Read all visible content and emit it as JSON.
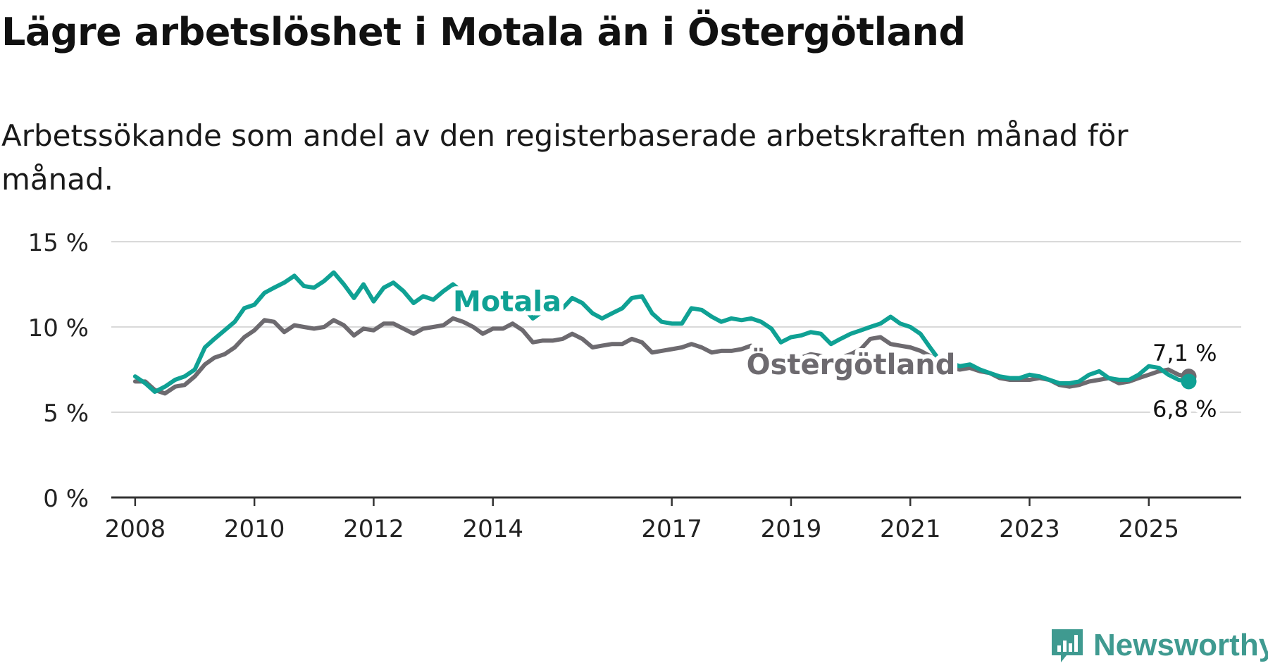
{
  "title": "Lägre arbetslöshet i Motala än i Östergötland",
  "subtitle": "Arbetssökande som andel av den registerbaserade arbetskraften månad för månad.",
  "brand": {
    "name": "Newsworthy",
    "color": "#3f9a90"
  },
  "chart_data": {
    "type": "line",
    "title": "Lägre arbetslöshet i Motala än i Östergötland",
    "xlabel": "",
    "ylabel": "",
    "ylim": [
      0,
      15
    ],
    "xlim": [
      2007.6,
      2026.55
    ],
    "y_ticks": [
      {
        "value": 0,
        "label": "0 %"
      },
      {
        "value": 5,
        "label": "5 %"
      },
      {
        "value": 10,
        "label": "10 %"
      },
      {
        "value": 15,
        "label": "15 %"
      }
    ],
    "x_ticks": [
      {
        "value": 2008,
        "label": "2008"
      },
      {
        "value": 2010,
        "label": "2010"
      },
      {
        "value": 2012,
        "label": "2012"
      },
      {
        "value": 2014,
        "label": "2014"
      },
      {
        "value": 2017,
        "label": "2017"
      },
      {
        "value": 2019,
        "label": "2019"
      },
      {
        "value": 2021,
        "label": "2021"
      },
      {
        "value": 2023,
        "label": "2023"
      },
      {
        "value": 2025,
        "label": "2025"
      }
    ],
    "grid": true,
    "series": [
      {
        "name": "Östergötland",
        "label": "Östergötland",
        "color": "#6d6a6f",
        "end_label": "7,1 %",
        "points": [
          [
            2008.0,
            6.8
          ],
          [
            2008.17,
            6.8
          ],
          [
            2008.33,
            6.3
          ],
          [
            2008.5,
            6.1
          ],
          [
            2008.67,
            6.5
          ],
          [
            2008.83,
            6.6
          ],
          [
            2009.0,
            7.1
          ],
          [
            2009.17,
            7.8
          ],
          [
            2009.33,
            8.2
          ],
          [
            2009.5,
            8.4
          ],
          [
            2009.67,
            8.8
          ],
          [
            2009.83,
            9.4
          ],
          [
            2010.0,
            9.8
          ],
          [
            2010.17,
            10.4
          ],
          [
            2010.33,
            10.3
          ],
          [
            2010.5,
            9.7
          ],
          [
            2010.67,
            10.1
          ],
          [
            2010.83,
            10.0
          ],
          [
            2011.0,
            9.9
          ],
          [
            2011.17,
            10.0
          ],
          [
            2011.33,
            10.4
          ],
          [
            2011.5,
            10.1
          ],
          [
            2011.67,
            9.5
          ],
          [
            2011.83,
            9.9
          ],
          [
            2012.0,
            9.8
          ],
          [
            2012.17,
            10.2
          ],
          [
            2012.33,
            10.2
          ],
          [
            2012.5,
            9.9
          ],
          [
            2012.67,
            9.6
          ],
          [
            2012.83,
            9.9
          ],
          [
            2013.0,
            10.0
          ],
          [
            2013.17,
            10.1
          ],
          [
            2013.33,
            10.5
          ],
          [
            2013.5,
            10.3
          ],
          [
            2013.67,
            10.0
          ],
          [
            2013.83,
            9.6
          ],
          [
            2014.0,
            9.9
          ],
          [
            2014.17,
            9.9
          ],
          [
            2014.33,
            10.2
          ],
          [
            2014.5,
            9.8
          ],
          [
            2014.67,
            9.1
          ],
          [
            2014.83,
            9.2
          ],
          [
            2015.0,
            9.2
          ],
          [
            2015.17,
            9.3
          ],
          [
            2015.33,
            9.6
          ],
          [
            2015.5,
            9.3
          ],
          [
            2015.67,
            8.8
          ],
          [
            2015.83,
            8.9
          ],
          [
            2016.0,
            9.0
          ],
          [
            2016.17,
            9.0
          ],
          [
            2016.33,
            9.3
          ],
          [
            2016.5,
            9.1
          ],
          [
            2016.67,
            8.5
          ],
          [
            2016.83,
            8.6
          ],
          [
            2017.0,
            8.7
          ],
          [
            2017.17,
            8.8
          ],
          [
            2017.33,
            9.0
          ],
          [
            2017.5,
            8.8
          ],
          [
            2017.67,
            8.5
          ],
          [
            2017.83,
            8.6
          ],
          [
            2018.0,
            8.6
          ],
          [
            2018.17,
            8.7
          ],
          [
            2018.33,
            8.9
          ],
          [
            2018.5,
            8.4
          ],
          [
            2018.67,
            8.1
          ],
          [
            2018.83,
            8.2
          ],
          [
            2019.0,
            8.3
          ],
          [
            2019.17,
            8.2
          ],
          [
            2019.33,
            8.4
          ],
          [
            2019.5,
            8.3
          ],
          [
            2019.67,
            8.0
          ],
          [
            2019.83,
            8.2
          ],
          [
            2020.0,
            8.4
          ],
          [
            2020.17,
            8.7
          ],
          [
            2020.33,
            9.3
          ],
          [
            2020.5,
            9.4
          ],
          [
            2020.67,
            9.0
          ],
          [
            2020.83,
            8.9
          ],
          [
            2021.0,
            8.8
          ],
          [
            2021.17,
            8.6
          ],
          [
            2021.33,
            8.3
          ],
          [
            2021.5,
            8.0
          ],
          [
            2021.67,
            7.6
          ],
          [
            2021.83,
            7.5
          ],
          [
            2022.0,
            7.6
          ],
          [
            2022.17,
            7.4
          ],
          [
            2022.33,
            7.3
          ],
          [
            2022.5,
            7.0
          ],
          [
            2022.67,
            6.9
          ],
          [
            2022.83,
            6.9
          ],
          [
            2023.0,
            6.9
          ],
          [
            2023.17,
            7.0
          ],
          [
            2023.33,
            6.9
          ],
          [
            2023.5,
            6.6
          ],
          [
            2023.67,
            6.5
          ],
          [
            2023.83,
            6.6
          ],
          [
            2024.0,
            6.8
          ],
          [
            2024.17,
            6.9
          ],
          [
            2024.33,
            7.0
          ],
          [
            2024.5,
            6.7
          ],
          [
            2024.67,
            6.8
          ],
          [
            2024.83,
            7.0
          ],
          [
            2025.0,
            7.2
          ],
          [
            2025.17,
            7.4
          ],
          [
            2025.33,
            7.5
          ],
          [
            2025.5,
            7.2
          ],
          [
            2025.67,
            7.1
          ]
        ]
      },
      {
        "name": "Motala",
        "label": "Motala",
        "color": "#0fa194",
        "end_label": "6,8 %",
        "points": [
          [
            2008.0,
            7.1
          ],
          [
            2008.17,
            6.7
          ],
          [
            2008.33,
            6.2
          ],
          [
            2008.5,
            6.5
          ],
          [
            2008.67,
            6.9
          ],
          [
            2008.83,
            7.1
          ],
          [
            2009.0,
            7.5
          ],
          [
            2009.17,
            8.8
          ],
          [
            2009.33,
            9.3
          ],
          [
            2009.5,
            9.8
          ],
          [
            2009.67,
            10.3
          ],
          [
            2009.83,
            11.1
          ],
          [
            2010.0,
            11.3
          ],
          [
            2010.17,
            12.0
          ],
          [
            2010.33,
            12.3
          ],
          [
            2010.5,
            12.6
          ],
          [
            2010.67,
            13.0
          ],
          [
            2010.83,
            12.4
          ],
          [
            2011.0,
            12.3
          ],
          [
            2011.17,
            12.7
          ],
          [
            2011.33,
            13.2
          ],
          [
            2011.5,
            12.5
          ],
          [
            2011.67,
            11.7
          ],
          [
            2011.83,
            12.5
          ],
          [
            2012.0,
            11.5
          ],
          [
            2012.17,
            12.3
          ],
          [
            2012.33,
            12.6
          ],
          [
            2012.5,
            12.1
          ],
          [
            2012.67,
            11.4
          ],
          [
            2012.83,
            11.8
          ],
          [
            2013.0,
            11.6
          ],
          [
            2013.17,
            12.1
          ],
          [
            2013.33,
            12.5
          ],
          [
            2013.5,
            12.0
          ],
          [
            2013.67,
            11.2
          ],
          [
            2013.83,
            11.4
          ],
          [
            2014.0,
            11.6
          ],
          [
            2014.17,
            11.5
          ],
          [
            2014.33,
            11.8
          ],
          [
            2014.5,
            11.2
          ],
          [
            2014.67,
            10.5
          ],
          [
            2014.83,
            10.9
          ],
          [
            2015.0,
            10.9
          ],
          [
            2015.17,
            11.1
          ],
          [
            2015.33,
            11.7
          ],
          [
            2015.5,
            11.4
          ],
          [
            2015.67,
            10.8
          ],
          [
            2015.83,
            10.5
          ],
          [
            2016.0,
            10.8
          ],
          [
            2016.17,
            11.1
          ],
          [
            2016.33,
            11.7
          ],
          [
            2016.5,
            11.8
          ],
          [
            2016.67,
            10.8
          ],
          [
            2016.83,
            10.3
          ],
          [
            2017.0,
            10.2
          ],
          [
            2017.17,
            10.2
          ],
          [
            2017.33,
            11.1
          ],
          [
            2017.5,
            11.0
          ],
          [
            2017.67,
            10.6
          ],
          [
            2017.83,
            10.3
          ],
          [
            2018.0,
            10.5
          ],
          [
            2018.17,
            10.4
          ],
          [
            2018.33,
            10.5
          ],
          [
            2018.5,
            10.3
          ],
          [
            2018.67,
            9.9
          ],
          [
            2018.83,
            9.1
          ],
          [
            2019.0,
            9.4
          ],
          [
            2019.17,
            9.5
          ],
          [
            2019.33,
            9.7
          ],
          [
            2019.5,
            9.6
          ],
          [
            2019.67,
            9.0
          ],
          [
            2019.83,
            9.3
          ],
          [
            2020.0,
            9.6
          ],
          [
            2020.17,
            9.8
          ],
          [
            2020.33,
            10.0
          ],
          [
            2020.5,
            10.2
          ],
          [
            2020.67,
            10.6
          ],
          [
            2020.83,
            10.2
          ],
          [
            2021.0,
            10.0
          ],
          [
            2021.17,
            9.6
          ],
          [
            2021.33,
            8.8
          ],
          [
            2021.5,
            8.0
          ],
          [
            2021.67,
            7.9
          ],
          [
            2021.83,
            7.7
          ],
          [
            2022.0,
            7.8
          ],
          [
            2022.17,
            7.5
          ],
          [
            2022.33,
            7.3
          ],
          [
            2022.5,
            7.1
          ],
          [
            2022.67,
            7.0
          ],
          [
            2022.83,
            7.0
          ],
          [
            2023.0,
            7.2
          ],
          [
            2023.17,
            7.1
          ],
          [
            2023.33,
            6.9
          ],
          [
            2023.5,
            6.7
          ],
          [
            2023.67,
            6.7
          ],
          [
            2023.83,
            6.8
          ],
          [
            2024.0,
            7.2
          ],
          [
            2024.17,
            7.4
          ],
          [
            2024.33,
            7.0
          ],
          [
            2024.5,
            6.9
          ],
          [
            2024.67,
            6.9
          ],
          [
            2024.83,
            7.2
          ],
          [
            2025.0,
            7.7
          ],
          [
            2025.17,
            7.6
          ],
          [
            2025.33,
            7.2
          ],
          [
            2025.5,
            6.9
          ],
          [
            2025.67,
            6.8
          ]
        ]
      }
    ]
  }
}
